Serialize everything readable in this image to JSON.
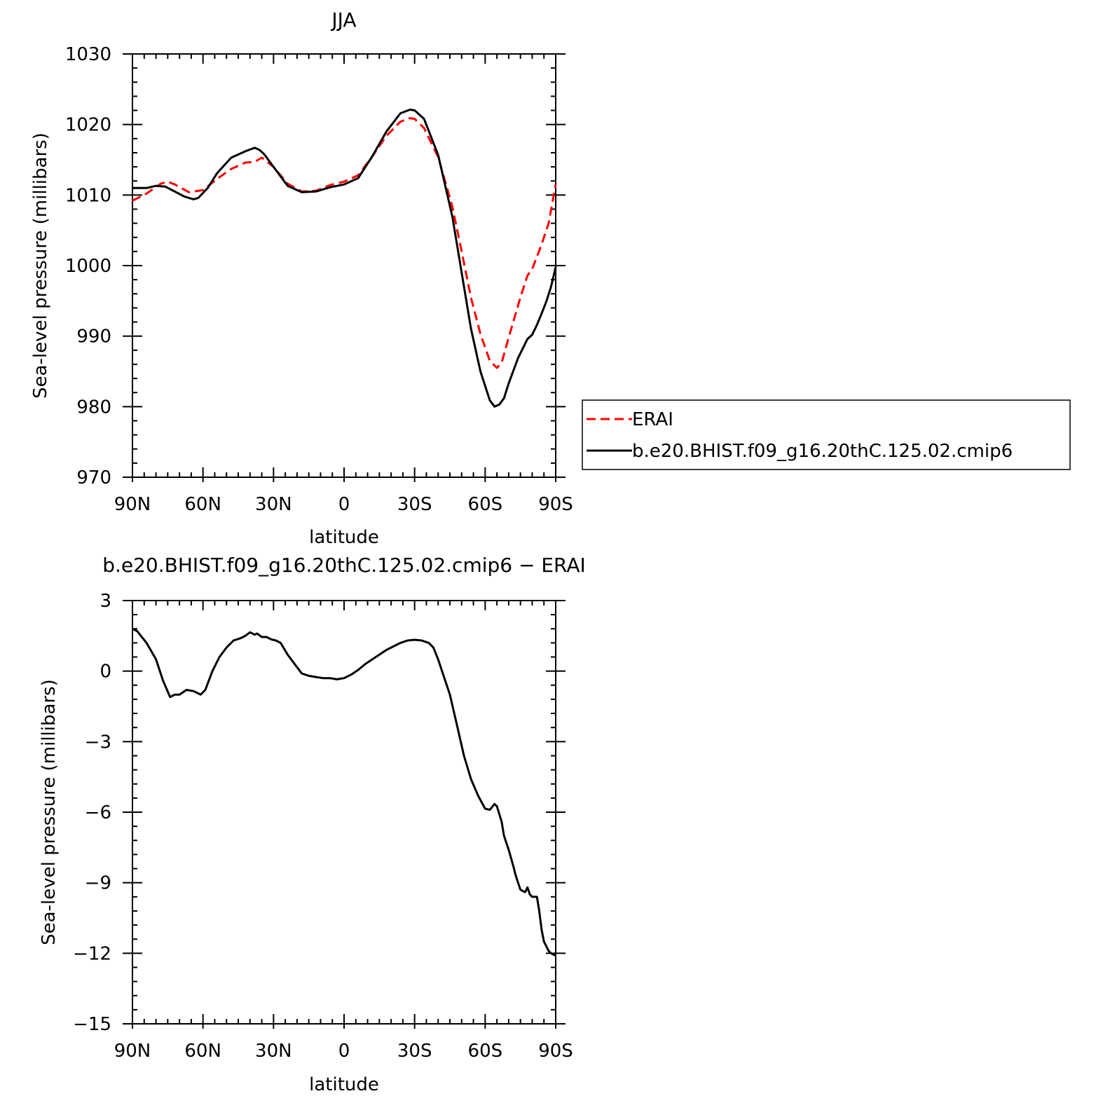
{
  "chart_data": [
    {
      "type": "line",
      "title": "JJA",
      "xlabel": "latitude",
      "ylabel": "Sea-level pressure (millibars)",
      "xlim": [
        90,
        -90
      ],
      "ylim": [
        970,
        1030
      ],
      "x_ticks": [
        90,
        60,
        30,
        0,
        -30,
        -60,
        -90
      ],
      "x_tick_labels": [
        "90N",
        "60N",
        "30N",
        "0",
        "30S",
        "60S",
        "90S"
      ],
      "y_ticks": [
        970,
        980,
        990,
        1000,
        1010,
        1020,
        1030
      ],
      "y_tick_labels": [
        "970",
        "980",
        "990",
        "1000",
        "1010",
        "1020",
        "1030"
      ],
      "legend": {
        "placement": "right",
        "entries": [
          "ERAI",
          "b.e20.BHIST.f09_g16.20thC.125.02.cmip6"
        ]
      },
      "series": [
        {
          "name": "ERAI",
          "color": "#ff0000",
          "style": "dashed",
          "x": [
            90,
            84,
            78,
            75,
            72,
            66,
            60,
            54,
            48,
            42,
            38,
            35,
            30,
            24,
            18,
            12,
            6,
            0,
            -6,
            -12,
            -18,
            -24,
            -28,
            -30,
            -34,
            -40,
            -46,
            -50,
            -54,
            -58,
            -62,
            -65,
            -67,
            -70,
            -75,
            -78,
            -80,
            -84,
            -87,
            -90
          ],
          "y": [
            1009.2,
            1010.2,
            1011.6,
            1011.9,
            1011.5,
            1010.4,
            1010.7,
            1012.3,
            1013.7,
            1014.6,
            1014.7,
            1015.3,
            1014.0,
            1011.6,
            1010.5,
            1010.6,
            1011.4,
            1011.9,
            1012.8,
            1015.5,
            1018.4,
            1020.4,
            1020.9,
            1020.8,
            1019.5,
            1015.4,
            1008.4,
            1002.0,
            995.4,
            990.3,
            986.5,
            985.5,
            986.2,
            989.8,
            995.5,
            998.6,
            999.5,
            1003.0,
            1006.0,
            1011.5
          ]
        },
        {
          "name": "b.e20.BHIST.f09_g16.20thC.125.02.cmip6",
          "color": "#000000",
          "style": "solid",
          "x": [
            90,
            84,
            80,
            76,
            72,
            68,
            64,
            62,
            58,
            54,
            48,
            42,
            38,
            36,
            34,
            30,
            24,
            18,
            12,
            6,
            0,
            -6,
            -12,
            -18,
            -24,
            -28,
            -30,
            -34,
            -40,
            -46,
            -50,
            -54,
            -58,
            -62,
            -64,
            -66,
            -68,
            -70,
            -74,
            -78,
            -80,
            -82,
            -84,
            -86,
            -88,
            -90
          ],
          "y": [
            1011.0,
            1011.0,
            1011.3,
            1011.2,
            1010.5,
            1009.8,
            1009.4,
            1009.6,
            1011.0,
            1013.1,
            1015.3,
            1016.2,
            1016.7,
            1016.4,
            1015.8,
            1014.0,
            1011.3,
            1010.4,
            1010.5,
            1011.1,
            1011.5,
            1012.4,
            1015.5,
            1019.0,
            1021.6,
            1022.1,
            1022.0,
            1020.8,
            1015.7,
            1007.0,
            999.0,
            991.0,
            985.0,
            980.9,
            980.0,
            980.3,
            981.2,
            983.3,
            986.9,
            989.6,
            990.2,
            991.6,
            993.2,
            994.9,
            997.0,
            999.8
          ]
        }
      ]
    },
    {
      "type": "line",
      "title": "b.e20.BHIST.f09_g16.20thC.125.02.cmip6 − ERAI",
      "xlabel": "latitude",
      "ylabel": "Sea-level pressure (millibars)",
      "xlim": [
        90,
        -90
      ],
      "ylim": [
        -15,
        3
      ],
      "x_ticks": [
        90,
        60,
        30,
        0,
        -30,
        -60,
        -90
      ],
      "x_tick_labels": [
        "90N",
        "60N",
        "30N",
        "0",
        "30S",
        "60S",
        "90S"
      ],
      "y_ticks": [
        -15,
        -12,
        -9,
        -6,
        -3,
        0,
        3
      ],
      "y_tick_labels": [
        "−15",
        "−12",
        "−9",
        "−6",
        "−3",
        "0",
        "3"
      ],
      "series": [
        {
          "color": "#000000",
          "style": "solid",
          "x": [
            90,
            88,
            84,
            80,
            77,
            74,
            72,
            70,
            67,
            64,
            61,
            59,
            56,
            53,
            50,
            47,
            44,
            42,
            40,
            38,
            37,
            35,
            33,
            31,
            29,
            27,
            24,
            21,
            18,
            15,
            12,
            9,
            6,
            3,
            0,
            -3,
            -6,
            -9,
            -12,
            -15,
            -18,
            -21,
            -24,
            -27,
            -30,
            -33,
            -36,
            -38,
            -40,
            -42,
            -45,
            -48,
            -51,
            -54,
            -57,
            -60,
            -62,
            -64,
            -65,
            -67,
            -68,
            -70,
            -72,
            -73,
            -74,
            -75,
            -77,
            -78,
            -79,
            -80,
            -82,
            -83,
            -84,
            -85,
            -86,
            -87,
            -88,
            -89,
            -90
          ],
          "y": [
            1.8,
            1.7,
            1.2,
            0.5,
            -0.4,
            -1.1,
            -1.0,
            -1.0,
            -0.8,
            -0.85,
            -1.0,
            -0.8,
            0.0,
            0.6,
            1.0,
            1.3,
            1.4,
            1.5,
            1.65,
            1.55,
            1.6,
            1.45,
            1.45,
            1.35,
            1.3,
            1.2,
            0.7,
            0.3,
            -0.1,
            -0.2,
            -0.25,
            -0.3,
            -0.3,
            -0.35,
            -0.3,
            -0.15,
            0.05,
            0.3,
            0.5,
            0.7,
            0.9,
            1.05,
            1.2,
            1.3,
            1.33,
            1.3,
            1.2,
            1.0,
            0.5,
            -0.1,
            -1.0,
            -2.3,
            -3.6,
            -4.6,
            -5.3,
            -5.85,
            -5.9,
            -5.65,
            -5.75,
            -6.4,
            -7.0,
            -7.6,
            -8.3,
            -8.7,
            -9.0,
            -9.3,
            -9.4,
            -9.2,
            -9.5,
            -9.6,
            -9.6,
            -10.2,
            -11.0,
            -11.5,
            -11.7,
            -11.9,
            -12.0,
            -12.05,
            -12.1
          ]
        }
      ]
    }
  ]
}
